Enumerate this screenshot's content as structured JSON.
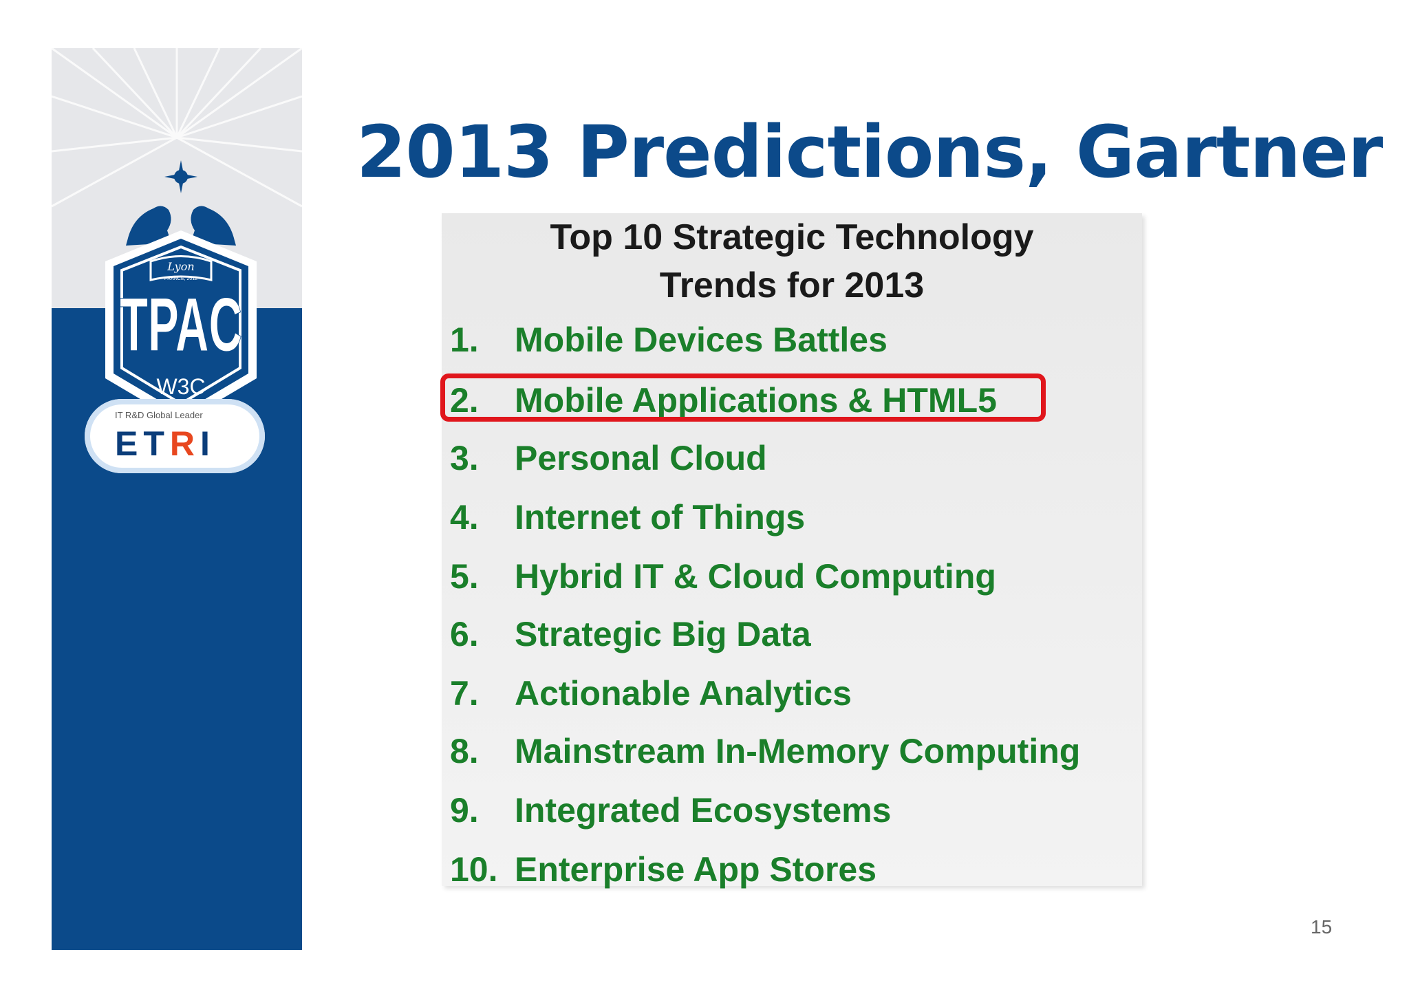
{
  "banner": {
    "tpac_logo": {
      "text": "TPAC",
      "city": "Lyon",
      "subtitle": "FRANCE, 2012",
      "org": "W3C"
    },
    "etri": {
      "tagline": "IT R&D Global Leader",
      "name_main": "ETRI",
      "colors": {
        "blue": "#0b3d7a",
        "orange": "#e8471f"
      }
    },
    "colors": {
      "banner_blue": "#0b4a8a",
      "banner_light": "#e6e7ea"
    }
  },
  "slide": {
    "title": "2013 Predictions, Gartner",
    "title_color": "#0c4a8a",
    "page_number": "15"
  },
  "panel": {
    "heading_line1": "Top 10 Strategic Technology",
    "heading_line2": "Trends for 2013",
    "item_color": "#1a7f2a",
    "highlight_color": "#e0161c",
    "highlighted_index": 2,
    "items": [
      {
        "num": "1.",
        "text": "Mobile Devices Battles"
      },
      {
        "num": "2.",
        "text": "Mobile Applications & HTML5"
      },
      {
        "num": "3.",
        "text": "Personal Cloud"
      },
      {
        "num": "4.",
        "text": "Internet of Things"
      },
      {
        "num": "5.",
        "text": "Hybrid IT & Cloud Computing"
      },
      {
        "num": "6.",
        "text": "Strategic Big Data"
      },
      {
        "num": "7.",
        "text": "Actionable Analytics"
      },
      {
        "num": "8.",
        "text": "Mainstream In-Memory Computing"
      },
      {
        "num": "9.",
        "text": "Integrated Ecosystems"
      },
      {
        "num": "10.",
        "text": "Enterprise App Stores"
      }
    ]
  }
}
